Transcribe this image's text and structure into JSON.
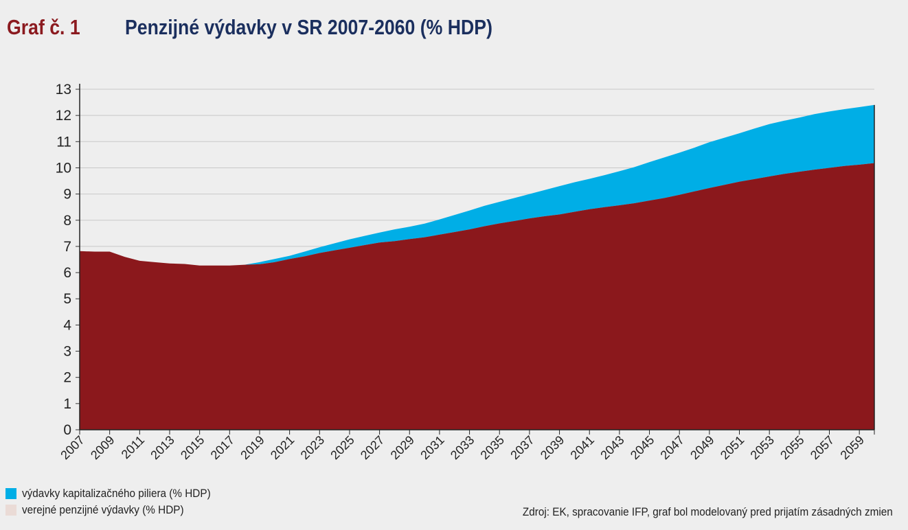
{
  "header": {
    "label": "Graf č. 1",
    "title": "Penzijné výdavky v SR 2007-2060 (% HDP)"
  },
  "colors": {
    "public": "#8b181c",
    "funded": "#00aee6",
    "public_legend": "#eadbd6",
    "grid": "#c8c8c8"
  },
  "legend": {
    "funded": "výdavky kapitalizačného piliera (% HDP)",
    "public": "verejné penzijné výdavky (% HDP)"
  },
  "source": "Zdroj: EK, spracovanie IFP, graf bol modelovaný pred prijatím zásadných zmien",
  "chart_data": {
    "type": "area",
    "stacked": true,
    "title": "Penzijné výdavky v SR 2007-2060 (% HDP)",
    "xlabel": "",
    "ylabel": "",
    "ylim": [
      0,
      13
    ],
    "yticks": [
      0,
      1,
      2,
      3,
      4,
      5,
      6,
      7,
      8,
      9,
      10,
      11,
      12,
      13
    ],
    "grid": true,
    "x": [
      2007,
      2008,
      2009,
      2010,
      2011,
      2012,
      2013,
      2014,
      2015,
      2016,
      2017,
      2018,
      2019,
      2020,
      2021,
      2022,
      2023,
      2024,
      2025,
      2026,
      2027,
      2028,
      2029,
      2030,
      2031,
      2032,
      2033,
      2034,
      2035,
      2036,
      2037,
      2038,
      2039,
      2040,
      2041,
      2042,
      2043,
      2044,
      2045,
      2046,
      2047,
      2048,
      2049,
      2050,
      2051,
      2052,
      2053,
      2054,
      2055,
      2056,
      2057,
      2058,
      2059,
      2060
    ],
    "xtick_labels": [
      "2007",
      "2009",
      "2011",
      "2013",
      "2015",
      "2017",
      "2019",
      "2021",
      "2023",
      "2025",
      "2027",
      "2029",
      "2031",
      "2033",
      "2035",
      "2037",
      "2039",
      "2041",
      "2043",
      "2045",
      "2047",
      "2049",
      "2051",
      "2053",
      "2055",
      "2057",
      "2059"
    ],
    "series": [
      {
        "name": "verejné penzijné výdavky (% HDP)",
        "values": [
          6.82,
          6.8,
          6.8,
          6.6,
          6.45,
          6.4,
          6.35,
          6.33,
          6.27,
          6.27,
          6.27,
          6.3,
          6.32,
          6.4,
          6.52,
          6.62,
          6.75,
          6.85,
          6.95,
          7.05,
          7.15,
          7.2,
          7.28,
          7.35,
          7.45,
          7.55,
          7.65,
          7.77,
          7.88,
          7.97,
          8.07,
          8.15,
          8.22,
          8.32,
          8.42,
          8.5,
          8.57,
          8.65,
          8.75,
          8.85,
          8.97,
          9.1,
          9.23,
          9.35,
          9.47,
          9.57,
          9.67,
          9.77,
          9.85,
          9.93,
          10.0,
          10.07,
          10.12,
          10.18
        ]
      },
      {
        "name": "výdavky kapitalizačného piliera (% HDP)",
        "values": [
          0,
          0,
          0,
          0,
          0,
          0,
          0,
          0,
          0,
          0,
          0,
          0,
          0.08,
          0.12,
          0.12,
          0.18,
          0.22,
          0.27,
          0.32,
          0.35,
          0.38,
          0.45,
          0.47,
          0.52,
          0.58,
          0.65,
          0.72,
          0.78,
          0.82,
          0.88,
          0.93,
          1.0,
          1.08,
          1.13,
          1.16,
          1.22,
          1.3,
          1.38,
          1.47,
          1.55,
          1.61,
          1.67,
          1.75,
          1.8,
          1.85,
          1.93,
          2.0,
          2.03,
          2.07,
          2.12,
          2.15,
          2.17,
          2.2,
          2.22
        ]
      }
    ]
  }
}
